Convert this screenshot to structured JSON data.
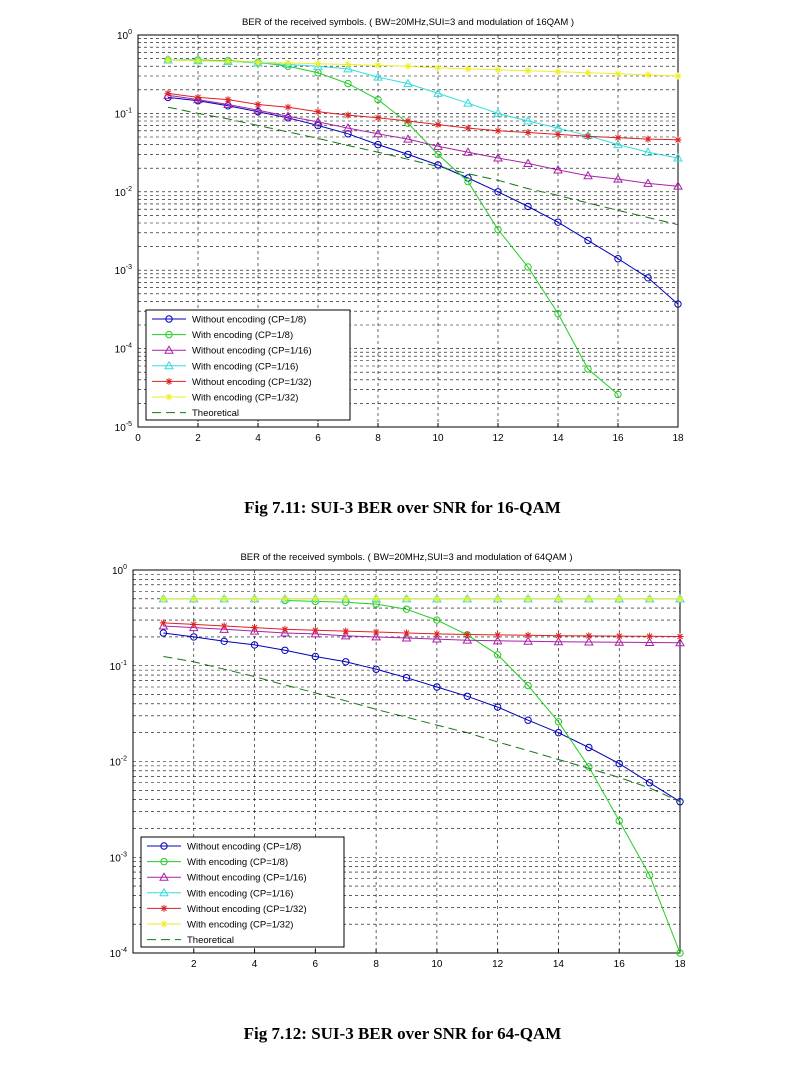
{
  "figures": [
    {
      "caption": "Fig 7.11: SUI-3 BER over SNR for 16-QAM"
    },
    {
      "caption": "Fig 7.12: SUI-3 BER over SNR for 64-QAM"
    }
  ],
  "chart_data": [
    {
      "type": "line",
      "title": "BER of the received symbols. ( BW=20MHz,SUI=3 and modulation of 16QAM )",
      "xlabel": "",
      "ylabel": "",
      "xlim": [
        0,
        18
      ],
      "ylim": [
        1e-05,
        1
      ],
      "yscale": "log",
      "xticks": [
        0,
        2,
        4,
        6,
        8,
        10,
        12,
        14,
        16,
        18
      ],
      "yticks": [
        {
          "value": 1,
          "base": "10",
          "exp": "0"
        },
        {
          "value": 0.1,
          "base": "10",
          "exp": "-1"
        },
        {
          "value": 0.01,
          "base": "10",
          "exp": "-2"
        },
        {
          "value": 0.001,
          "base": "10",
          "exp": "-3"
        },
        {
          "value": 0.0001,
          "base": "10",
          "exp": "-4"
        },
        {
          "value": 1e-05,
          "base": "10",
          "exp": "-5"
        }
      ],
      "grid": true,
      "legend_position": "bottom-left",
      "series": [
        {
          "name": "Without encoding (CP=1/8)",
          "color": "#0000bb",
          "marker": "circle",
          "dash": false,
          "x": [
            1,
            2,
            3,
            4,
            5,
            6,
            7,
            8,
            9,
            10,
            11,
            12,
            13,
            14,
            15,
            16,
            17,
            18
          ],
          "y": [
            0.16,
            0.145,
            0.125,
            0.105,
            0.088,
            0.07,
            0.055,
            0.04,
            0.03,
            0.022,
            0.015,
            0.01,
            0.0065,
            0.0041,
            0.0024,
            0.0014,
            0.0008,
            0.00037
          ]
        },
        {
          "name": "With encoding (CP=1/8)",
          "color": "#22cc22",
          "marker": "circle",
          "dash": false,
          "x": [
            1,
            2,
            3,
            4,
            5,
            6,
            7,
            8,
            9,
            10,
            11,
            12,
            13,
            14,
            15,
            16
          ],
          "y": [
            0.48,
            0.48,
            0.47,
            0.45,
            0.4,
            0.33,
            0.24,
            0.15,
            0.075,
            0.03,
            0.0135,
            0.0033,
            0.0011,
            0.00028,
            5.5e-05,
            2.6e-05
          ]
        },
        {
          "name": "Without encoding (CP=1/16)",
          "color": "#aa22aa",
          "marker": "triangle",
          "dash": false,
          "x": [
            1,
            2,
            3,
            4,
            5,
            6,
            7,
            8,
            9,
            10,
            11,
            12,
            13,
            14,
            15,
            16,
            17,
            18
          ],
          "y": [
            0.17,
            0.15,
            0.13,
            0.11,
            0.092,
            0.078,
            0.065,
            0.055,
            0.047,
            0.038,
            0.032,
            0.027,
            0.023,
            0.019,
            0.016,
            0.0145,
            0.0128,
            0.0118
          ]
        },
        {
          "name": "With encoding (CP=1/16)",
          "color": "#33dddd",
          "marker": "triangle",
          "dash": false,
          "x": [
            1,
            2,
            3,
            4,
            5,
            6,
            7,
            8,
            9,
            10,
            11,
            12,
            13,
            14,
            15,
            16,
            17,
            18
          ],
          "y": [
            0.48,
            0.47,
            0.46,
            0.44,
            0.42,
            0.4,
            0.37,
            0.29,
            0.24,
            0.18,
            0.135,
            0.1,
            0.08,
            0.065,
            0.052,
            0.04,
            0.032,
            0.027
          ]
        },
        {
          "name": "Without encoding (CP=1/32)",
          "color": "#dd2222",
          "marker": "star",
          "dash": false,
          "x": [
            1,
            2,
            3,
            4,
            5,
            6,
            7,
            8,
            9,
            10,
            11,
            12,
            13,
            14,
            15,
            16,
            17,
            18
          ],
          "y": [
            0.18,
            0.16,
            0.15,
            0.13,
            0.12,
            0.105,
            0.095,
            0.088,
            0.08,
            0.072,
            0.065,
            0.06,
            0.057,
            0.054,
            0.051,
            0.049,
            0.047,
            0.046
          ]
        },
        {
          "name": "With encoding (CP=1/32)",
          "color": "#eeee22",
          "marker": "star",
          "dash": false,
          "x": [
            1,
            2,
            3,
            4,
            5,
            6,
            7,
            8,
            9,
            10,
            11,
            12,
            13,
            14,
            15,
            16,
            17,
            18
          ],
          "y": [
            0.48,
            0.47,
            0.46,
            0.45,
            0.44,
            0.43,
            0.42,
            0.41,
            0.4,
            0.38,
            0.37,
            0.36,
            0.35,
            0.34,
            0.33,
            0.32,
            0.31,
            0.3
          ]
        },
        {
          "name": "Theoretical",
          "color": "#117711",
          "marker": "none",
          "dash": true,
          "x": [
            1,
            2,
            3,
            4,
            5,
            6,
            7,
            8,
            9,
            10,
            11,
            12,
            13,
            14,
            15,
            16,
            17,
            18
          ],
          "y": [
            0.12,
            0.1,
            0.085,
            0.07,
            0.058,
            0.048,
            0.039,
            0.032,
            0.026,
            0.021,
            0.017,
            0.014,
            0.011,
            0.009,
            0.0072,
            0.0058,
            0.0047,
            0.0038
          ]
        }
      ]
    },
    {
      "type": "line",
      "title": "BER of the received symbols. ( BW=20MHz,SUI=3 and modulation of 64QAM )",
      "xlabel": "",
      "ylabel": "",
      "xlim": [
        0,
        18
      ],
      "ylim": [
        0.0001,
        1
      ],
      "yscale": "log",
      "xticks": [
        2,
        4,
        6,
        8,
        10,
        12,
        14,
        16,
        18
      ],
      "yticks": [
        {
          "value": 1,
          "base": "10",
          "exp": "0"
        },
        {
          "value": 0.1,
          "base": "10",
          "exp": "-1"
        },
        {
          "value": 0.01,
          "base": "10",
          "exp": "-2"
        },
        {
          "value": 0.001,
          "base": "10",
          "exp": "-3"
        },
        {
          "value": 0.0001,
          "base": "10",
          "exp": "-4"
        }
      ],
      "grid": true,
      "legend_position": "bottom-left",
      "series": [
        {
          "name": "Without encoding (CP=1/8)",
          "color": "#0000bb",
          "marker": "circle",
          "dash": false,
          "x": [
            1,
            2,
            3,
            4,
            5,
            6,
            7,
            8,
            9,
            10,
            11,
            12,
            13,
            14,
            15,
            16,
            17,
            18
          ],
          "y": [
            0.22,
            0.2,
            0.18,
            0.165,
            0.145,
            0.125,
            0.11,
            0.092,
            0.075,
            0.06,
            0.048,
            0.037,
            0.027,
            0.02,
            0.014,
            0.0095,
            0.006,
            0.0038
          ]
        },
        {
          "name": "With encoding (CP=1/8)",
          "color": "#22cc22",
          "marker": "circle",
          "dash": false,
          "x": [
            5,
            6,
            7,
            8,
            9,
            10,
            11,
            12,
            13,
            14,
            15,
            16,
            17,
            18
          ],
          "y": [
            0.48,
            0.47,
            0.46,
            0.44,
            0.39,
            0.3,
            0.21,
            0.13,
            0.062,
            0.026,
            0.0088,
            0.0024,
            0.00065,
            0.0001
          ]
        },
        {
          "name": "Without encoding (CP=1/16)",
          "color": "#aa22aa",
          "marker": "triangle",
          "dash": false,
          "x": [
            1,
            2,
            3,
            4,
            5,
            6,
            7,
            8,
            9,
            10,
            11,
            12,
            13,
            14,
            15,
            16,
            17,
            18
          ],
          "y": [
            0.26,
            0.25,
            0.24,
            0.23,
            0.22,
            0.215,
            0.205,
            0.2,
            0.195,
            0.19,
            0.185,
            0.182,
            0.18,
            0.178,
            0.177,
            0.176,
            0.175,
            0.174
          ]
        },
        {
          "name": "With encoding (CP=1/16)",
          "color": "#33dddd",
          "marker": "triangle",
          "dash": false,
          "x": [
            1,
            2,
            3,
            4,
            5,
            6,
            7,
            8,
            9,
            10,
            11,
            12,
            13,
            14,
            15,
            16,
            17,
            18
          ],
          "y": [
            0.5,
            0.5,
            0.5,
            0.5,
            0.5,
            0.5,
            0.5,
            0.5,
            0.5,
            0.5,
            0.5,
            0.5,
            0.5,
            0.5,
            0.5,
            0.5,
            0.5,
            0.5
          ]
        },
        {
          "name": "Without encoding (CP=1/32)",
          "color": "#dd2222",
          "marker": "star",
          "dash": false,
          "x": [
            1,
            2,
            3,
            4,
            5,
            6,
            7,
            8,
            9,
            10,
            11,
            12,
            13,
            14,
            15,
            16,
            17,
            18
          ],
          "y": [
            0.28,
            0.27,
            0.26,
            0.25,
            0.24,
            0.235,
            0.23,
            0.225,
            0.22,
            0.215,
            0.212,
            0.21,
            0.208,
            0.206,
            0.205,
            0.204,
            0.203,
            0.202
          ]
        },
        {
          "name": "With encoding (CP=1/32)",
          "color": "#eeee22",
          "marker": "star",
          "dash": false,
          "x": [
            1,
            2,
            3,
            4,
            5,
            6,
            7,
            8,
            9,
            10,
            11,
            12,
            13,
            14,
            15,
            16,
            17,
            18
          ],
          "y": [
            0.5,
            0.5,
            0.5,
            0.5,
            0.5,
            0.5,
            0.5,
            0.5,
            0.5,
            0.5,
            0.5,
            0.5,
            0.5,
            0.5,
            0.5,
            0.5,
            0.5,
            0.5
          ]
        },
        {
          "name": "Theoretical",
          "color": "#117711",
          "marker": "none",
          "dash": true,
          "x": [
            1,
            2,
            3,
            4,
            5,
            6,
            7,
            8,
            9,
            10,
            11,
            12,
            13,
            14,
            15,
            16,
            17,
            18
          ],
          "y": [
            0.125,
            0.11,
            0.092,
            0.077,
            0.063,
            0.052,
            0.043,
            0.035,
            0.029,
            0.024,
            0.02,
            0.016,
            0.013,
            0.0105,
            0.0085,
            0.0068,
            0.0053,
            0.0038
          ]
        }
      ]
    }
  ]
}
